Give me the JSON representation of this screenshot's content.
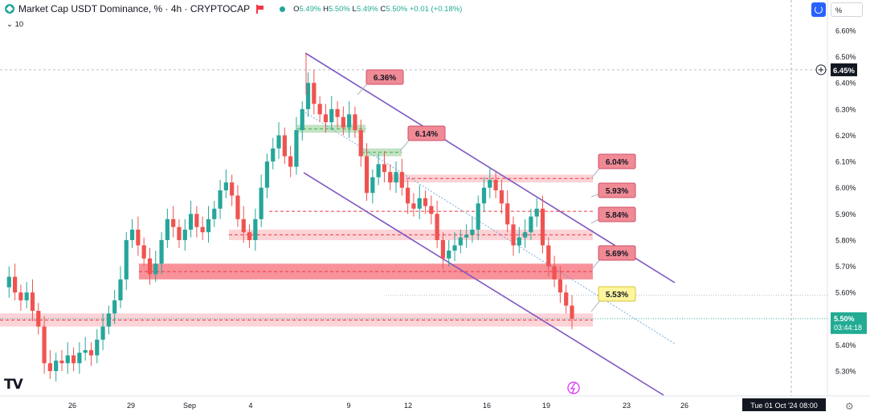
{
  "header": {
    "title": "Market Cap USDT Dominance, % · 4h · CRYPTOCAP",
    "o_label": "O",
    "o_value": "5.49%",
    "h_label": "H",
    "h_value": "5.50%",
    "l_label": "L",
    "l_value": "5.49%",
    "c_label": "C",
    "c_value": "5.50%",
    "change": "+0.01 (+0.18%)",
    "indicator_toggle": "⌄",
    "indicator_value": "10"
  },
  "controls": {
    "scale_mode": "%",
    "tv_logo": "TV"
  },
  "colors": {
    "up": "#26a69a",
    "down": "#ef5350",
    "channel": "#7e57c2",
    "zone_red": "#f23645",
    "zone_green": "#4caf50",
    "label_red": "#f08a95",
    "label_yellow": "#fff59d"
  },
  "chart_data": {
    "type": "candlestick",
    "y_axis_ticks": [
      "6.60%",
      "6.50%",
      "6.40%",
      "6.30%",
      "6.20%",
      "6.10%",
      "6.00%",
      "5.90%",
      "5.80%",
      "5.70%",
      "5.60%",
      "5.50%",
      "5.40%",
      "5.30%"
    ],
    "ylim": [
      5.24,
      6.66
    ],
    "x_axis_ticks": [
      "26",
      "29",
      "Sep",
      "4",
      "9",
      "12",
      "16",
      "19",
      "23",
      "26"
    ],
    "crosshair_price": "6.45%",
    "crosshair_time": "Tue 01 Oct '24  08:00",
    "last_price": "5.50%",
    "countdown": "03:44:18",
    "level_labels": [
      {
        "text": "6.36%",
        "value": 6.36
      },
      {
        "text": "6.14%",
        "value": 6.14
      },
      {
        "text": "6.04%",
        "value": 6.04
      },
      {
        "text": "5.93%",
        "value": 5.93
      },
      {
        "text": "5.84%",
        "value": 5.84
      },
      {
        "text": "5.69%",
        "value": 5.69
      },
      {
        "text": "5.53%",
        "value": 5.53
      }
    ],
    "zones": [
      {
        "kind": "resistance",
        "color": "red",
        "low": 5.65,
        "high": 5.71
      },
      {
        "kind": "support",
        "color": "red",
        "low": 5.47,
        "high": 5.52
      },
      {
        "kind": "range",
        "color": "red",
        "low": 5.8,
        "high": 5.84
      },
      {
        "kind": "range",
        "color": "red",
        "low": 6.02,
        "high": 6.05
      },
      {
        "kind": "demand",
        "color": "green",
        "low": 6.21,
        "high": 6.24
      },
      {
        "kind": "demand",
        "color": "green",
        "low": 6.12,
        "high": 6.15
      }
    ],
    "channel": "descending",
    "candles_path": [
      5.62,
      5.66,
      5.6,
      5.57,
      5.6,
      5.53,
      5.47,
      5.33,
      5.3,
      5.34,
      5.33,
      5.36,
      5.33,
      5.37,
      5.38,
      5.36,
      5.42,
      5.47,
      5.52,
      5.57,
      5.65,
      5.8,
      5.84,
      5.78,
      5.73,
      5.67,
      5.71,
      5.8,
      5.88,
      5.85,
      5.8,
      5.84,
      5.9,
      5.85,
      5.83,
      5.88,
      5.92,
      5.99,
      6.02,
      5.97,
      5.88,
      5.83,
      5.8,
      5.88,
      6.0,
      6.1,
      6.15,
      6.2,
      6.12,
      6.08,
      6.22,
      6.3,
      6.4,
      6.32,
      6.28,
      6.25,
      6.3,
      6.27,
      6.23,
      6.28,
      6.22,
      6.12,
      5.98,
      6.04,
      6.09,
      6.06,
      6.02,
      6.06,
      6.0,
      5.94,
      5.92,
      5.96,
      5.93,
      5.9,
      5.8,
      5.73,
      5.76,
      5.78,
      5.81,
      5.82,
      5.84,
      5.94,
      6.0,
      6.03,
      5.99,
      5.94,
      5.86,
      5.78,
      5.81,
      5.83,
      5.89,
      5.92,
      5.78,
      5.7,
      5.65,
      5.6,
      5.55,
      5.5
    ]
  }
}
